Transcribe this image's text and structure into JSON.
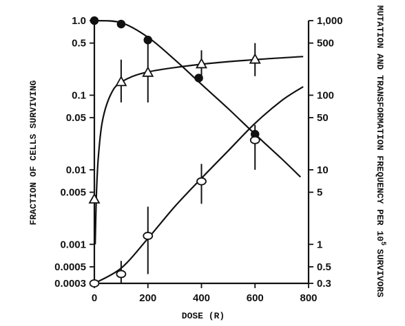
{
  "chart_data": {
    "type": "scatter",
    "x_axis": {
      "label": "DOSE (R)",
      "range": [
        0,
        800
      ],
      "ticks": [
        0,
        200,
        400,
        600,
        800
      ],
      "tick_labels": [
        "0",
        "200",
        "400",
        "600",
        "800"
      ]
    },
    "y_left": {
      "label": "FRACTION OF CELLS SURVIVING",
      "scale": "log",
      "range": [
        0.0003,
        1.0
      ],
      "ticks": [
        1.0,
        0.5,
        0.1,
        0.05,
        0.01,
        0.005,
        0.001,
        0.0005,
        0.0003
      ],
      "tick_labels": [
        "1.0",
        "0.5",
        "0.1",
        "0.05",
        "0.01",
        "0.005",
        "0.001",
        "0.0005",
        "0.0003"
      ]
    },
    "y_right": {
      "label_main": "MUTATION AND TRANSFORMATION FREQUENCY PER 10",
      "label_exp": "5",
      "label_end": "SURVIVORS",
      "scale": "log",
      "range": [
        0.3,
        1000
      ],
      "ticks": [
        1000,
        500,
        100,
        50,
        10,
        5,
        1,
        0.5,
        0.3
      ],
      "tick_labels": [
        "1,000",
        "500",
        "100",
        "50",
        "10",
        "5",
        "1",
        "0.5",
        "0.3"
      ]
    },
    "series": [
      {
        "marker": "filled-circle",
        "axis": "left",
        "points": [
          {
            "x": 0,
            "y": 1.0
          },
          {
            "x": 100,
            "y": 0.9
          },
          {
            "x": 200,
            "y": 0.55
          },
          {
            "x": 390,
            "y": 0.17
          },
          {
            "x": 600,
            "y": 0.03
          }
        ],
        "fit": [
          [
            0,
            1.0
          ],
          [
            100,
            0.94
          ],
          [
            200,
            0.6
          ],
          [
            300,
            0.3
          ],
          [
            400,
            0.14
          ],
          [
            500,
            0.066
          ],
          [
            600,
            0.03
          ],
          [
            700,
            0.014
          ],
          [
            770,
            0.008
          ]
        ]
      },
      {
        "marker": "open-triangle",
        "axis": "right",
        "points": [
          {
            "x": 0,
            "y": 4,
            "err": [
              2.2,
              8
            ]
          },
          {
            "x": 100,
            "y": 150,
            "err": [
              80,
              300
            ]
          },
          {
            "x": 200,
            "y": 200,
            "err": [
              80,
              500
            ]
          },
          {
            "x": 400,
            "y": 260,
            "err": [
              170,
              400
            ]
          },
          {
            "x": 600,
            "y": 300,
            "err": [
              180,
              500
            ]
          }
        ],
        "fit": [
          [
            3,
            1.0
          ],
          [
            8,
            5
          ],
          [
            15,
            15
          ],
          [
            30,
            45
          ],
          [
            60,
            100
          ],
          [
            100,
            150
          ],
          [
            200,
            205
          ],
          [
            400,
            260
          ],
          [
            600,
            300
          ],
          [
            780,
            330
          ]
        ]
      },
      {
        "marker": "open-circle",
        "axis": "right",
        "points": [
          {
            "x": 0,
            "y": 0.3
          },
          {
            "x": 100,
            "y": 0.4,
            "err": [
              0.3,
              0.6
            ]
          },
          {
            "x": 200,
            "y": 1.3,
            "err": [
              0.4,
              3.2
            ]
          },
          {
            "x": 400,
            "y": 7,
            "err": [
              3.5,
              12
            ]
          },
          {
            "x": 600,
            "y": 25,
            "err": [
              10,
              40
            ]
          }
        ],
        "fit": [
          [
            0,
            0.3
          ],
          [
            100,
            0.48
          ],
          [
            200,
            1.2
          ],
          [
            300,
            3.2
          ],
          [
            400,
            7.7
          ],
          [
            500,
            18
          ],
          [
            600,
            42
          ],
          [
            700,
            85
          ],
          [
            780,
            130
          ]
        ]
      }
    ]
  }
}
